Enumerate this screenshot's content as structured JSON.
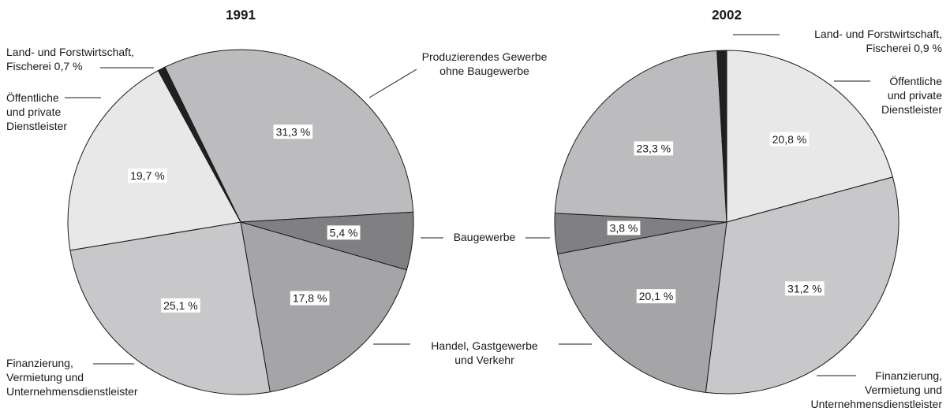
{
  "chart_data": [
    {
      "type": "pie",
      "title": "1991",
      "categories": [
        [
          "Produzierendes Gewerbe",
          "ohne Baugewerbe"
        ],
        [
          "Baugewerbe"
        ],
        [
          "Handel, Gastgewerbe",
          "und Verkehr"
        ],
        [
          "Finanzierung,",
          "Vermietung und",
          "Unternehmensdienstleister"
        ],
        [
          "Öffentliche",
          "und private",
          "Dienstleister"
        ],
        [
          "Land- und Forstwirtschaft,",
          "Fischerei 0,7 %"
        ]
      ],
      "values": [
        31.3,
        5.4,
        17.8,
        25.1,
        19.7,
        0.7
      ],
      "value_labels": [
        "31,3 %",
        "5,4 %",
        "17,8 %",
        "25,1 %",
        "19,7 %",
        null
      ],
      "colors": [
        "#bcbcbe",
        "#808083",
        "#a5a5a8",
        "#c8c8ca",
        "#e8e8e9",
        "#231f20"
      ]
    },
    {
      "type": "pie",
      "title": "2002",
      "categories": [
        [
          "Öffentliche",
          "und private",
          "Dienstleister"
        ],
        [
          "Finanzierung,",
          "Vermietung und",
          "Unternehmensdienstleister"
        ],
        null,
        null,
        null,
        [
          "Land- und Forstwirtschaft,",
          "Fischerei 0,9 %"
        ]
      ],
      "values": [
        20.8,
        31.2,
        20.1,
        3.8,
        23.3,
        0.9
      ],
      "value_labels": [
        "20,8 %",
        "31,2 %",
        "20,1 %",
        "3,8 %",
        "23,3 %",
        null
      ],
      "colors": [
        "#e8e8e9",
        "#c8c8ca",
        "#a5a5a8",
        "#808083",
        "#bcbcbe",
        "#231f20"
      ]
    }
  ]
}
